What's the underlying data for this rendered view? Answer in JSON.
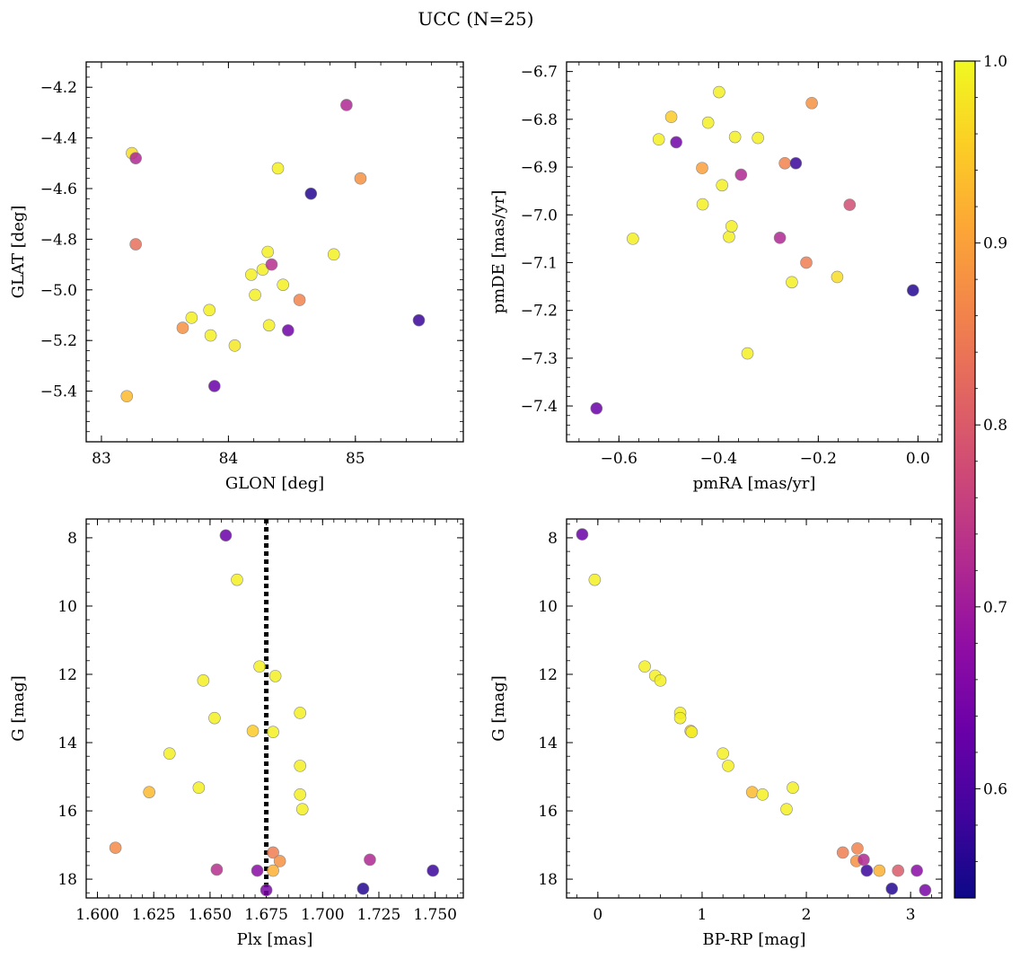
{
  "figure": {
    "title": "UCC (N=25)"
  },
  "colorbar": {
    "colormap": "plasma",
    "range": [
      0.54,
      1.0
    ],
    "ticks": [
      0.6,
      0.7,
      0.8,
      0.9,
      1.0
    ],
    "tick_labels": [
      "0.6",
      "0.7",
      "0.8",
      "0.9",
      "1.0"
    ]
  },
  "chart_data": [
    {
      "type": "scatter",
      "xlabel": "GLON [deg]",
      "ylabel": "GLAT [deg]",
      "xlim": [
        82.88,
        85.85
      ],
      "ylim": [
        -5.6,
        -4.1
      ],
      "y_inverted": false,
      "xticks": [
        83,
        84,
        85
      ],
      "xtick_labels": [
        "83",
        "84",
        "85"
      ],
      "yticks": [
        -5.4,
        -5.2,
        -5.0,
        -4.8,
        -4.6,
        -4.4,
        -4.2
      ],
      "ytick_labels": [
        "−5.4",
        "−5.2",
        "−5.0",
        "−4.8",
        "−4.6",
        "−4.4",
        "−4.2"
      ],
      "points": [
        {
          "x": 83.24,
          "y": -4.46,
          "c": 0.97
        },
        {
          "x": 83.27,
          "y": -4.48,
          "c": 0.72
        },
        {
          "x": 83.27,
          "y": -4.82,
          "c": 0.83
        },
        {
          "x": 83.2,
          "y": -5.42,
          "c": 0.93
        },
        {
          "x": 83.64,
          "y": -5.15,
          "c": 0.88
        },
        {
          "x": 83.71,
          "y": -5.11,
          "c": 0.99
        },
        {
          "x": 83.85,
          "y": -5.08,
          "c": 0.99
        },
        {
          "x": 83.86,
          "y": -5.18,
          "c": 0.99
        },
        {
          "x": 83.89,
          "y": -5.38,
          "c": 0.63
        },
        {
          "x": 84.05,
          "y": -5.22,
          "c": 0.98
        },
        {
          "x": 84.18,
          "y": -4.94,
          "c": 0.99
        },
        {
          "x": 84.21,
          "y": -5.02,
          "c": 0.99
        },
        {
          "x": 84.27,
          "y": -4.92,
          "c": 0.99
        },
        {
          "x": 84.31,
          "y": -4.85,
          "c": 0.99
        },
        {
          "x": 84.32,
          "y": -5.14,
          "c": 0.99
        },
        {
          "x": 84.34,
          "y": -4.9,
          "c": 0.73
        },
        {
          "x": 84.39,
          "y": -4.52,
          "c": 0.99
        },
        {
          "x": 84.43,
          "y": -4.98,
          "c": 0.99
        },
        {
          "x": 84.47,
          "y": -5.16,
          "c": 0.64
        },
        {
          "x": 84.56,
          "y": -5.04,
          "c": 0.86
        },
        {
          "x": 84.65,
          "y": -4.62,
          "c": 0.56
        },
        {
          "x": 84.83,
          "y": -4.86,
          "c": 0.99
        },
        {
          "x": 84.93,
          "y": -4.27,
          "c": 0.72
        },
        {
          "x": 85.04,
          "y": -4.56,
          "c": 0.88
        },
        {
          "x": 85.5,
          "y": -5.12,
          "c": 0.58
        }
      ]
    },
    {
      "type": "scatter",
      "xlabel": "pmRA [mas/yr]",
      "ylabel": "pmDE [mas/yr]",
      "xlim": [
        -0.705,
        0.048
      ],
      "ylim": [
        -7.475,
        -6.68
      ],
      "y_inverted": false,
      "xticks": [
        -0.6,
        -0.4,
        -0.2,
        0.0
      ],
      "xtick_labels": [
        "−0.6",
        "−0.4",
        "−0.2",
        "0.0"
      ],
      "yticks": [
        -7.4,
        -7.3,
        -7.2,
        -7.1,
        -7.0,
        -6.9,
        -6.8,
        -6.7
      ],
      "ytick_labels": [
        "−7.4",
        "−7.3",
        "−7.2",
        "−7.1",
        "−7.0",
        "−6.9",
        "−6.8",
        "−6.7"
      ],
      "points": [
        {
          "x": -0.645,
          "y": -7.405,
          "c": 0.63
        },
        {
          "x": -0.572,
          "y": -7.05,
          "c": 0.99
        },
        {
          "x": -0.52,
          "y": -6.842,
          "c": 0.99
        },
        {
          "x": -0.495,
          "y": -6.795,
          "c": 0.95
        },
        {
          "x": -0.485,
          "y": -6.848,
          "c": 0.64
        },
        {
          "x": -0.433,
          "y": -6.902,
          "c": 0.9
        },
        {
          "x": -0.432,
          "y": -6.978,
          "c": 0.99
        },
        {
          "x": -0.421,
          "y": -6.807,
          "c": 0.99
        },
        {
          "x": -0.399,
          "y": -6.743,
          "c": 0.99
        },
        {
          "x": -0.393,
          "y": -6.938,
          "c": 0.99
        },
        {
          "x": -0.379,
          "y": -7.046,
          "c": 0.99
        },
        {
          "x": -0.374,
          "y": -7.024,
          "c": 0.99
        },
        {
          "x": -0.367,
          "y": -6.837,
          "c": 0.99
        },
        {
          "x": -0.355,
          "y": -6.916,
          "c": 0.72
        },
        {
          "x": -0.342,
          "y": -7.29,
          "c": 0.99
        },
        {
          "x": -0.321,
          "y": -6.839,
          "c": 0.99
        },
        {
          "x": -0.277,
          "y": -7.048,
          "c": 0.72
        },
        {
          "x": -0.267,
          "y": -6.892,
          "c": 0.86
        },
        {
          "x": -0.253,
          "y": -7.141,
          "c": 0.99
        },
        {
          "x": -0.245,
          "y": -6.892,
          "c": 0.58
        },
        {
          "x": -0.224,
          "y": -7.1,
          "c": 0.85
        },
        {
          "x": -0.213,
          "y": -6.766,
          "c": 0.88
        },
        {
          "x": -0.162,
          "y": -7.13,
          "c": 0.97
        },
        {
          "x": -0.137,
          "y": -6.979,
          "c": 0.78
        },
        {
          "x": -0.01,
          "y": -7.158,
          "c": 0.56
        }
      ]
    },
    {
      "type": "scatter",
      "xlabel": "Plx [mas]",
      "ylabel": "G [mag]",
      "xlim": [
        1.595,
        1.7625
      ],
      "ylim": [
        7.45,
        18.55
      ],
      "y_inverted": true,
      "vline": {
        "x": 1.675,
        "style": "dotted"
      },
      "xticks": [
        1.6,
        1.625,
        1.65,
        1.675,
        1.7,
        1.725,
        1.75
      ],
      "xtick_labels": [
        "1.600",
        "1.625",
        "1.650",
        "1.675",
        "1.700",
        "1.725",
        "1.750"
      ],
      "yticks": [
        8,
        10,
        12,
        14,
        16,
        18
      ],
      "ytick_labels": [
        "8",
        "10",
        "12",
        "14",
        "16",
        "18"
      ],
      "points": [
        {
          "x": 1.657,
          "y": 7.93,
          "c": 0.63
        },
        {
          "x": 1.662,
          "y": 9.23,
          "c": 0.99
        },
        {
          "x": 1.672,
          "y": 11.77,
          "c": 0.99
        },
        {
          "x": 1.679,
          "y": 12.05,
          "c": 0.99
        },
        {
          "x": 1.647,
          "y": 12.18,
          "c": 0.99
        },
        {
          "x": 1.69,
          "y": 13.13,
          "c": 0.99
        },
        {
          "x": 1.652,
          "y": 13.28,
          "c": 0.99
        },
        {
          "x": 1.669,
          "y": 13.66,
          "c": 0.95
        },
        {
          "x": 1.678,
          "y": 13.69,
          "c": 0.99
        },
        {
          "x": 1.632,
          "y": 14.32,
          "c": 0.99
        },
        {
          "x": 1.69,
          "y": 14.68,
          "c": 0.99
        },
        {
          "x": 1.645,
          "y": 15.32,
          "c": 0.99
        },
        {
          "x": 1.623,
          "y": 15.45,
          "c": 0.93
        },
        {
          "x": 1.69,
          "y": 15.52,
          "c": 0.99
        },
        {
          "x": 1.691,
          "y": 15.95,
          "c": 0.99
        },
        {
          "x": 1.608,
          "y": 17.08,
          "c": 0.87
        },
        {
          "x": 1.678,
          "y": 17.22,
          "c": 0.85
        },
        {
          "x": 1.721,
          "y": 17.43,
          "c": 0.72
        },
        {
          "x": 1.681,
          "y": 17.47,
          "c": 0.88
        },
        {
          "x": 1.653,
          "y": 17.72,
          "c": 0.73
        },
        {
          "x": 1.671,
          "y": 17.75,
          "c": 0.67
        },
        {
          "x": 1.678,
          "y": 17.75,
          "c": 0.92
        },
        {
          "x": 1.749,
          "y": 17.75,
          "c": 0.58
        },
        {
          "x": 1.718,
          "y": 18.28,
          "c": 0.56
        },
        {
          "x": 1.675,
          "y": 18.32,
          "c": 0.65
        }
      ]
    },
    {
      "type": "scatter",
      "xlabel": "BP-RP [mag]",
      "ylabel": "G [mag]",
      "xlim": [
        -0.3,
        3.3
      ],
      "ylim": [
        7.45,
        18.55
      ],
      "y_inverted": true,
      "xticks": [
        0,
        1,
        2,
        3
      ],
      "xtick_labels": [
        "0",
        "1",
        "2",
        "3"
      ],
      "yticks": [
        8,
        10,
        12,
        14,
        16,
        18
      ],
      "ytick_labels": [
        "8",
        "10",
        "12",
        "14",
        "16",
        "18"
      ],
      "points": [
        {
          "x": -0.15,
          "y": 7.9,
          "c": 0.63
        },
        {
          "x": -0.03,
          "y": 9.23,
          "c": 0.99
        },
        {
          "x": 0.45,
          "y": 11.77,
          "c": 0.99
        },
        {
          "x": 0.55,
          "y": 12.04,
          "c": 0.99
        },
        {
          "x": 0.6,
          "y": 12.18,
          "c": 0.99
        },
        {
          "x": 0.79,
          "y": 13.13,
          "c": 0.99
        },
        {
          "x": 0.79,
          "y": 13.28,
          "c": 0.99
        },
        {
          "x": 0.89,
          "y": 13.66,
          "c": 0.95
        },
        {
          "x": 0.9,
          "y": 13.69,
          "c": 0.99
        },
        {
          "x": 1.2,
          "y": 14.32,
          "c": 0.99
        },
        {
          "x": 1.25,
          "y": 14.68,
          "c": 0.99
        },
        {
          "x": 1.48,
          "y": 15.45,
          "c": 0.93
        },
        {
          "x": 1.58,
          "y": 15.52,
          "c": 0.99
        },
        {
          "x": 1.87,
          "y": 15.32,
          "c": 0.99
        },
        {
          "x": 1.81,
          "y": 15.95,
          "c": 0.99
        },
        {
          "x": 2.35,
          "y": 17.22,
          "c": 0.85
        },
        {
          "x": 2.49,
          "y": 17.1,
          "c": 0.86
        },
        {
          "x": 2.48,
          "y": 17.47,
          "c": 0.88
        },
        {
          "x": 2.55,
          "y": 17.43,
          "c": 0.72
        },
        {
          "x": 2.58,
          "y": 17.75,
          "c": 0.58
        },
        {
          "x": 2.7,
          "y": 17.75,
          "c": 0.92
        },
        {
          "x": 2.88,
          "y": 17.75,
          "c": 0.8
        },
        {
          "x": 3.06,
          "y": 17.75,
          "c": 0.67
        },
        {
          "x": 2.82,
          "y": 18.28,
          "c": 0.56
        },
        {
          "x": 3.14,
          "y": 18.32,
          "c": 0.65
        }
      ]
    }
  ]
}
